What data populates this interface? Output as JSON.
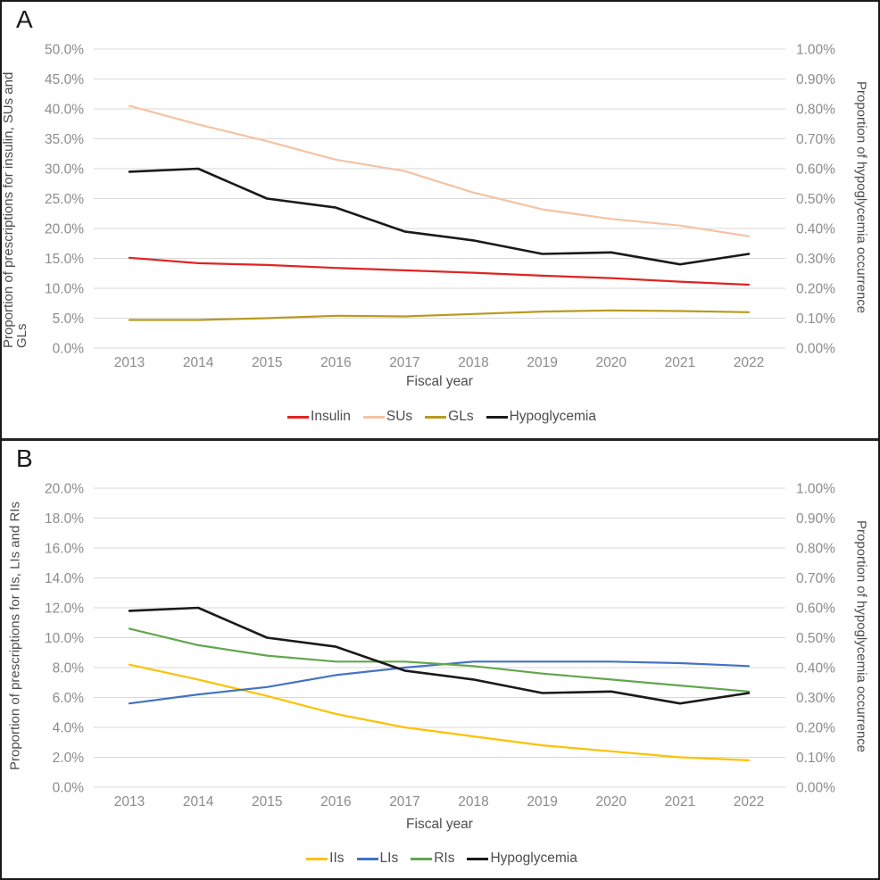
{
  "figure": {
    "background": "#ffffff",
    "border_color": "#1a1a1a",
    "grid_color": "#d9d9d9"
  },
  "chart_data": [
    {
      "type": "line",
      "panel_label": "A",
      "xlabel": "Fiscal year",
      "x_categories": [
        "2013",
        "2014",
        "2015",
        "2016",
        "2017",
        "2018",
        "2019",
        "2020",
        "2021",
        "2022"
      ],
      "left_axis": {
        "title": "Proportion of prescriptions for insulin, SUs and GLs",
        "min": 0,
        "max": 50,
        "ticks": [
          "50.0%",
          "45.0%",
          "40.0%",
          "35.0%",
          "30.0%",
          "25.0%",
          "20.0%",
          "15.0%",
          "10.0%",
          "5.0%",
          "0.0%"
        ]
      },
      "right_axis": {
        "title": "Proportion of hypoglycemia occurrence",
        "min": 0,
        "max": 1,
        "ticks": [
          "1.00%",
          "0.90%",
          "0.80%",
          "0.70%",
          "0.60%",
          "0.50%",
          "0.40%",
          "0.30%",
          "0.20%",
          "0.10%",
          "0.00%"
        ]
      },
      "grid": true,
      "legend_position": "bottom",
      "series": [
        {
          "name": "Insulin",
          "axis": "left",
          "color": "#e02323",
          "values": [
            15.1,
            14.2,
            13.9,
            13.4,
            13.0,
            12.6,
            12.1,
            11.7,
            11.1,
            10.6
          ]
        },
        {
          "name": "SUs",
          "axis": "left",
          "color": "#f4c3a3",
          "values": [
            40.5,
            37.4,
            34.6,
            31.5,
            29.6,
            26.0,
            23.2,
            21.6,
            20.5,
            18.7
          ]
        },
        {
          "name": "GLs",
          "axis": "left",
          "color": "#b89a20",
          "values": [
            4.7,
            4.7,
            5.0,
            5.4,
            5.3,
            5.7,
            6.1,
            6.3,
            6.2,
            6.0
          ]
        },
        {
          "name": "Hypoglycemia",
          "axis": "right",
          "color": "#1a1a1a",
          "values": [
            0.59,
            0.6,
            0.5,
            0.47,
            0.39,
            0.36,
            0.315,
            0.32,
            0.28,
            0.315
          ]
        }
      ]
    },
    {
      "type": "line",
      "panel_label": "B",
      "xlabel": "Fiscal year",
      "x_categories": [
        "2013",
        "2014",
        "2015",
        "2016",
        "2017",
        "2018",
        "2019",
        "2020",
        "2021",
        "2022"
      ],
      "left_axis": {
        "title": "Proportion of prescriptions for IIs, LIs and RIs",
        "min": 0,
        "max": 20,
        "ticks": [
          "20.0%",
          "18.0%",
          "16.0%",
          "14.0%",
          "12.0%",
          "10.0%",
          "8.0%",
          "6.0%",
          "4.0%",
          "2.0%",
          "0.0%"
        ]
      },
      "right_axis": {
        "title": "Proportion of hypoglycemia occurrence",
        "min": 0,
        "max": 1,
        "ticks": [
          "1.00%",
          "0.90%",
          "0.80%",
          "0.70%",
          "0.60%",
          "0.50%",
          "0.40%",
          "0.30%",
          "0.20%",
          "0.10%",
          "0.00%"
        ]
      },
      "grid": true,
      "legend_position": "bottom",
      "series": [
        {
          "name": "IIs",
          "axis": "left",
          "color": "#fdc100",
          "values": [
            8.2,
            7.2,
            6.1,
            4.9,
            4.0,
            3.4,
            2.8,
            2.4,
            2.0,
            1.8
          ]
        },
        {
          "name": "LIs",
          "axis": "left",
          "color": "#4472c4",
          "values": [
            5.6,
            6.2,
            6.7,
            7.5,
            8.0,
            8.4,
            8.4,
            8.4,
            8.3,
            8.1
          ]
        },
        {
          "name": "RIs",
          "axis": "left",
          "color": "#62a64e",
          "values": [
            10.6,
            9.5,
            8.8,
            8.4,
            8.4,
            8.1,
            7.6,
            7.2,
            6.8,
            6.4
          ]
        },
        {
          "name": "Hypoglycemia",
          "axis": "right",
          "color": "#1a1a1a",
          "values": [
            0.59,
            0.6,
            0.5,
            0.47,
            0.39,
            0.36,
            0.315,
            0.32,
            0.28,
            0.315
          ]
        }
      ]
    }
  ]
}
